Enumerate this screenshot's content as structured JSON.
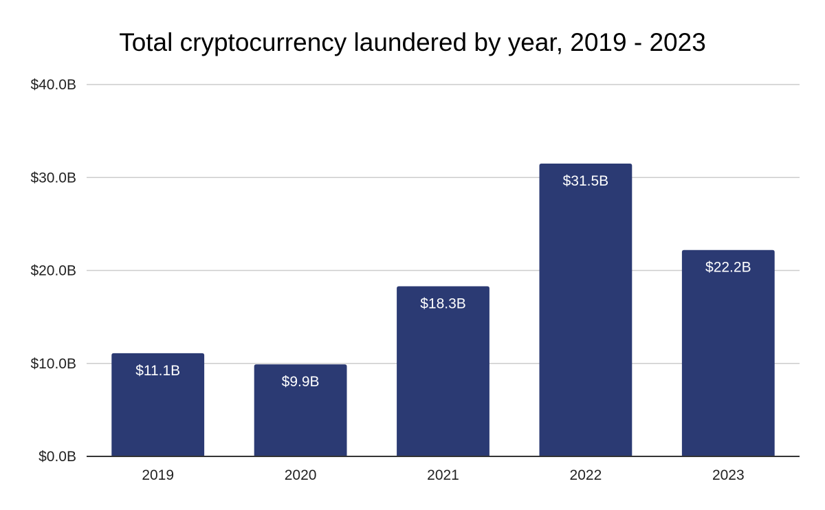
{
  "chart_data": {
    "type": "bar",
    "title": "Total cryptocurrency laundered by year, 2019 - 2023",
    "xlabel": "",
    "ylabel": "",
    "categories": [
      "2019",
      "2020",
      "2021",
      "2022",
      "2023"
    ],
    "values": [
      11.1,
      9.9,
      18.3,
      31.5,
      22.2
    ],
    "data_labels": [
      "$11.1B",
      "$9.9B",
      "$18.3B",
      "$31.5B",
      "$22.2B"
    ],
    "ylim": [
      0,
      40
    ],
    "yticks": [
      0,
      10,
      20,
      30,
      40
    ],
    "ytick_labels": [
      "$0.0B",
      "$10.0B",
      "$20.0B",
      "$30.0B",
      "$40.0B"
    ],
    "grid": true,
    "legend": "none",
    "colors": {
      "bar": "#2b3a73",
      "grid": "#cccccc",
      "axis": "#333333",
      "data_label": "#ffffff"
    }
  }
}
